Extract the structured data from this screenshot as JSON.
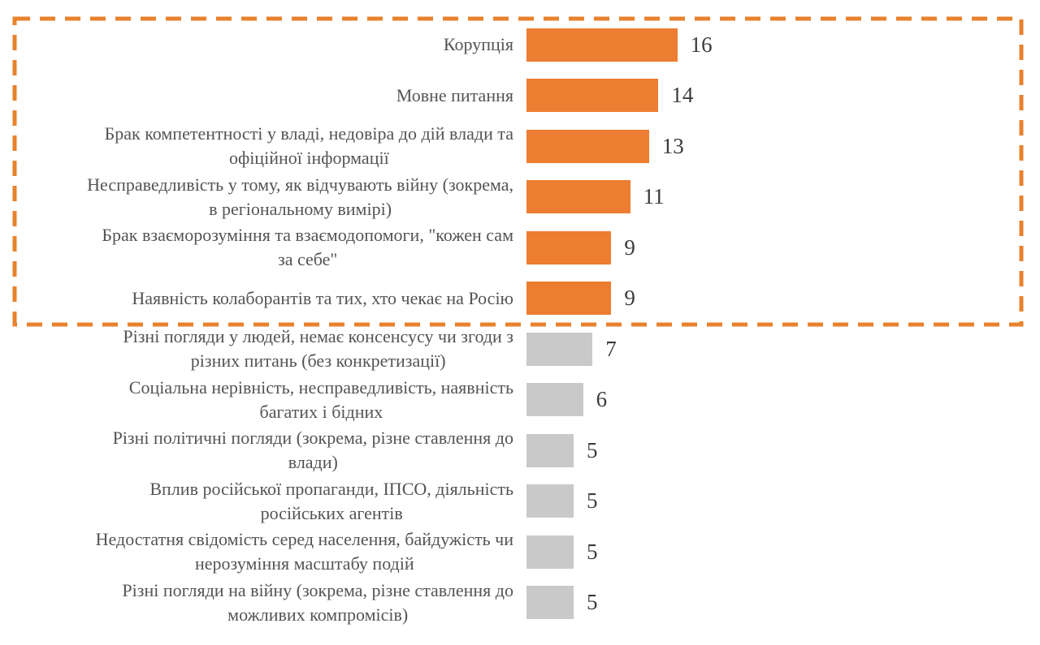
{
  "chart_data": {
    "type": "bar",
    "orientation": "horizontal",
    "title": "",
    "xlabel": "",
    "ylabel": "",
    "xlim": [
      0,
      16
    ],
    "grid": false,
    "legend": "none",
    "value_labels_shown": true,
    "categories": [
      "Корупція",
      "Мовне питання",
      "Брак компетентності у владі, недовіра до дій влади та\nофіційної інформації",
      "Несправедливість у тому, як відчувають війну (зокрема,\nв регіональному вимірі)",
      "Брак взаєморозуміння та взаємодопомоги, \"кожен сам\nза себе\"",
      "Наявність колаборантів та тих, хто чекає на Росію",
      "Різні погляди у людей, немає консенсусу чи згоди з\nрізних питань (без конкретизації)",
      "Соціальна нерівність, несправедливість, наявність\nбагатих і бідних",
      "Різні політичні погляди (зокрема, різне ставлення до\nвлади)",
      "Вплив російської пропаганди, ІПСО, діяльність\nросійських агентів",
      "Недостатня свідомість серед населення,  байдужість чи\nнерозуміння масштабу подій",
      "Різні погляди на війну (зокрема, різне ставлення до\nможливих компромісів)"
    ],
    "values": [
      16,
      14,
      13,
      11,
      9,
      9,
      7,
      6,
      5,
      5,
      5,
      5
    ],
    "highlighted_rows": 6,
    "highlight_box": {
      "style": "dashed",
      "border_color": "#E8822D",
      "encloses_categories_with_values_at_least": 9
    },
    "colors": {
      "highlighted_bar": "#ED7D31",
      "regular_bar": "#C9C9C9",
      "label_text": "#545454",
      "value_text": "#3B3B3B"
    }
  }
}
